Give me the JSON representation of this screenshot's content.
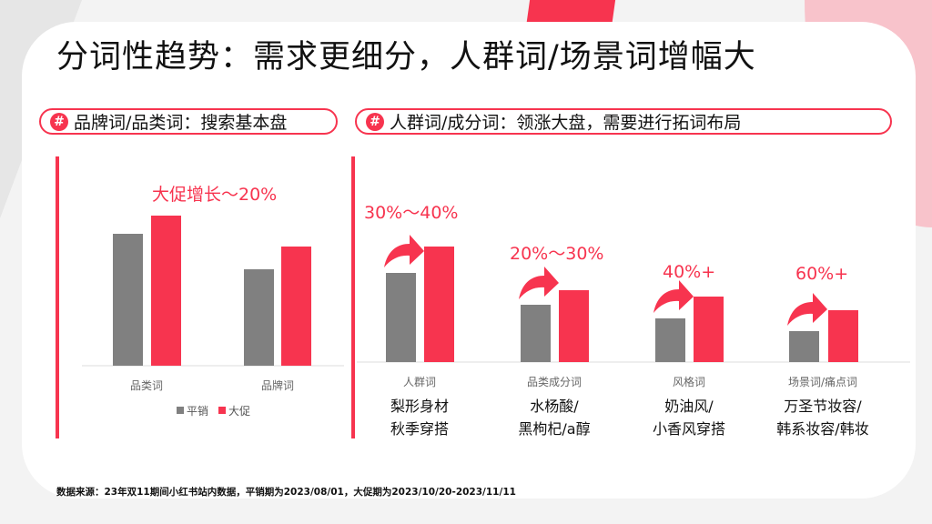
{
  "title": "分词性趋势：需求更细分，人群词/场景词增幅大",
  "pills": [
    {
      "icon": "hash-icon",
      "symbol": "#",
      "label": "品牌词/品类词：搜索基本盘"
    },
    {
      "icon": "hash-icon",
      "symbol": "#",
      "label": "人群词/成分词：领涨大盘，需要进行拓词布局"
    }
  ],
  "colors": {
    "accent": "#f7344f",
    "gray": "#808080"
  },
  "chart_data": [
    {
      "type": "bar",
      "categories": [
        "品类词",
        "品牌词"
      ],
      "series": [
        {
          "name": "平销",
          "values": [
            145,
            106
          ],
          "color": "#808080"
        },
        {
          "name": "大促",
          "values": [
            165,
            131
          ],
          "color": "#f7344f"
        }
      ],
      "annotation": "大促增长～20%",
      "legend": "bottom",
      "ylim": [
        0,
        200
      ],
      "grid": false
    },
    {
      "type": "bar",
      "categories": [
        "人群词",
        "品类成分词",
        "风格词",
        "场景词/痛点词"
      ],
      "series": [
        {
          "values": [
            98,
            63,
            48,
            34
          ],
          "color": "#808080"
        },
        {
          "values": [
            127,
            79,
            72,
            57
          ],
          "color": "#f7344f"
        }
      ],
      "annotations": [
        "30%～40%",
        "20%～30%",
        "40%+",
        "60%+"
      ],
      "examples": [
        [
          "梨形身材",
          "秋季穿搭"
        ],
        [
          "水杨酸/",
          "黑枸杞/a醇"
        ],
        [
          "奶油风/",
          "小香风穿搭"
        ],
        [
          "万圣节妆容/",
          "韩系妆容/韩妆"
        ]
      ],
      "ylim": [
        0,
        200
      ],
      "grid": false
    }
  ],
  "footnote": "数据来源：23年双11期间小红书站内数据，平销期为2023/08/01，大促期为2023/10/20-2023/11/11"
}
